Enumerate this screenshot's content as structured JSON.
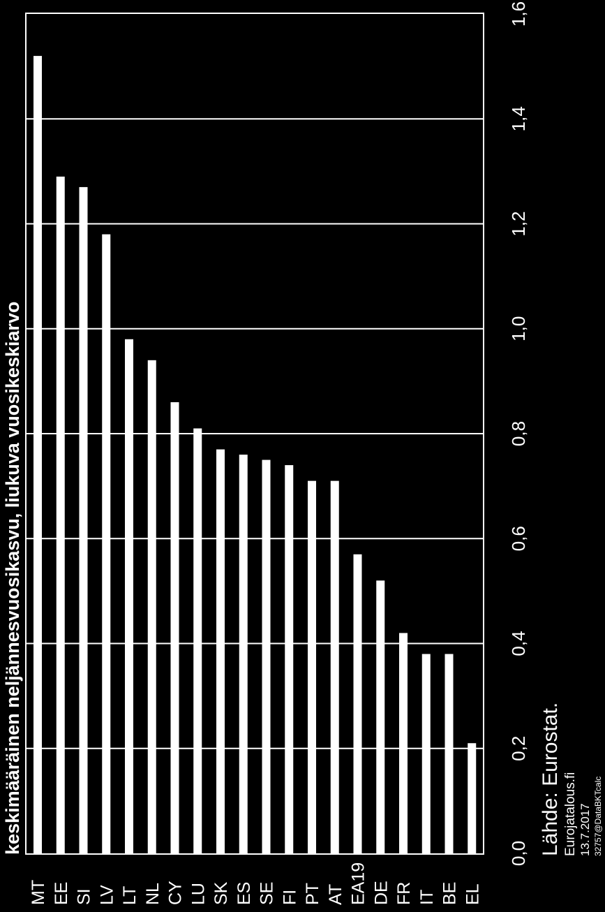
{
  "chart_data": {
    "type": "bar",
    "orientation": "rotated-90",
    "title": "keskimääräinen neljännesvuosikasvu, liukuva vuosikeskiarvo",
    "categories": [
      "MT",
      "EE",
      "SI",
      "LV",
      "LT",
      "NL",
      "CY",
      "LU",
      "SK",
      "ES",
      "SE",
      "FI",
      "PT",
      "AT",
      "EA19",
      "DE",
      "FR",
      "IT",
      "BE",
      "EL"
    ],
    "values": [
      1.52,
      1.29,
      1.27,
      1.18,
      0.98,
      0.94,
      0.86,
      0.81,
      0.77,
      0.76,
      0.75,
      0.74,
      0.71,
      0.71,
      0.57,
      0.52,
      0.42,
      0.38,
      0.38,
      0.21
    ],
    "value_ticks": [
      "0,0",
      "0,2",
      "0,4",
      "0,6",
      "0,8",
      "1,0",
      "1,2",
      "1,4",
      "1,6"
    ],
    "value_axis_range": [
      0,
      1.6
    ],
    "grid": true,
    "colors": {
      "background": "#000000",
      "bars": "#ffffff",
      "grid": "#ffffff"
    }
  },
  "footer": {
    "source": "Lähde: Eurostat.",
    "site": "Eurojatalous.fi",
    "date": "13.7.2017",
    "file_id": "32757@DataBKTcalc"
  }
}
